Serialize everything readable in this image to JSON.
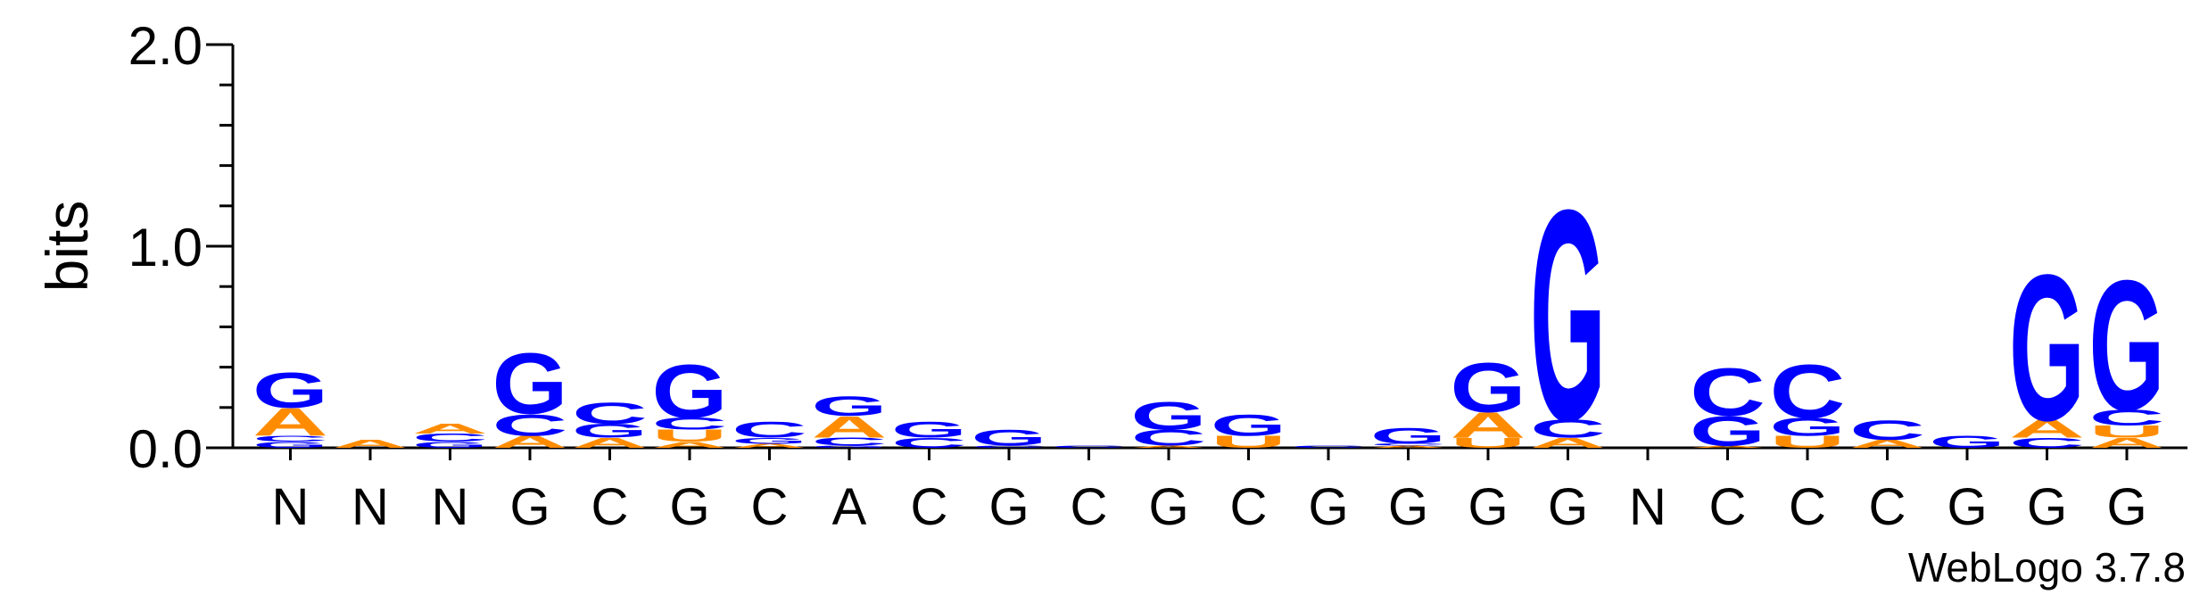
{
  "chart_data": {
    "type": "sequence-logo",
    "ylabel": "bits",
    "ylim": [
      0,
      2
    ],
    "yticks": [
      "0.0",
      "1.0",
      "2.0"
    ],
    "footer": "WebLogo 3.7.8",
    "colors": {
      "G": "#0000ff",
      "C": "#0000ff",
      "A": "#ff8c00",
      "U": "#ff8c00"
    },
    "positions": [
      {
        "label": "N",
        "stack": [
          [
            "G",
            0.03
          ],
          [
            "C",
            0.03
          ],
          [
            "A",
            0.14
          ],
          [
            "G",
            0.18
          ]
        ]
      },
      {
        "label": "N",
        "stack": [
          [
            "A",
            0.04
          ]
        ]
      },
      {
        "label": "N",
        "stack": [
          [
            "G",
            0.03
          ],
          [
            "C",
            0.04
          ],
          [
            "A",
            0.05
          ]
        ]
      },
      {
        "label": "G",
        "stack": [
          [
            "A",
            0.06
          ],
          [
            "C",
            0.11
          ],
          [
            "G",
            0.31
          ]
        ]
      },
      {
        "label": "C",
        "stack": [
          [
            "A",
            0.05
          ],
          [
            "G",
            0.07
          ],
          [
            "C",
            0.11
          ]
        ]
      },
      {
        "label": "G",
        "stack": [
          [
            "A",
            0.03
          ],
          [
            "U",
            0.06
          ],
          [
            "C",
            0.06
          ],
          [
            "G",
            0.27
          ]
        ]
      },
      {
        "label": "C",
        "stack": [
          [
            "A",
            0.02
          ],
          [
            "G",
            0.03
          ],
          [
            "C",
            0.08
          ]
        ]
      },
      {
        "label": "A",
        "stack": [
          [
            "G",
            0.01
          ],
          [
            "C",
            0.04
          ],
          [
            "A",
            0.11
          ],
          [
            "G",
            0.1
          ]
        ]
      },
      {
        "label": "C",
        "stack": [
          [
            "C",
            0.05
          ],
          [
            "G",
            0.08
          ]
        ]
      },
      {
        "label": "G",
        "stack": [
          [
            "C",
            0.01
          ],
          [
            "G",
            0.08
          ]
        ]
      },
      {
        "label": "C",
        "stack": [
          [
            "C",
            0.01
          ]
        ]
      },
      {
        "label": "G",
        "stack": [
          [
            "A",
            0.01
          ],
          [
            "C",
            0.08
          ],
          [
            "G",
            0.14
          ]
        ]
      },
      {
        "label": "C",
        "stack": [
          [
            "U",
            0.06
          ],
          [
            "G",
            0.11
          ]
        ]
      },
      {
        "label": "G",
        "stack": [
          [
            "C",
            0.01
          ]
        ]
      },
      {
        "label": "G",
        "stack": [
          [
            "A",
            0.01
          ],
          [
            "C",
            0.01
          ],
          [
            "G",
            0.08
          ]
        ]
      },
      {
        "label": "G",
        "stack": [
          [
            "U",
            0.05
          ],
          [
            "A",
            0.13
          ],
          [
            "G",
            0.25
          ]
        ]
      },
      {
        "label": "G",
        "stack": [
          [
            "A",
            0.05
          ],
          [
            "C",
            0.09
          ],
          [
            "G",
            1.07
          ]
        ]
      },
      {
        "label": "N",
        "stack": []
      },
      {
        "label": "C",
        "stack": [
          [
            "A",
            0.01
          ],
          [
            "G",
            0.15
          ],
          [
            "C",
            0.24
          ]
        ]
      },
      {
        "label": "C",
        "stack": [
          [
            "U",
            0.06
          ],
          [
            "G",
            0.09
          ],
          [
            "C",
            0.27
          ]
        ]
      },
      {
        "label": "C",
        "stack": [
          [
            "A",
            0.04
          ],
          [
            "C",
            0.1
          ]
        ]
      },
      {
        "label": "G",
        "stack": [
          [
            "G",
            0.06
          ]
        ]
      },
      {
        "label": "G",
        "stack": [
          [
            "C",
            0.05
          ],
          [
            "A",
            0.09
          ],
          [
            "G",
            0.74
          ]
        ]
      },
      {
        "label": "G",
        "stack": [
          [
            "A",
            0.05
          ],
          [
            "U",
            0.06
          ],
          [
            "C",
            0.08
          ],
          [
            "G",
            0.66
          ]
        ]
      }
    ]
  }
}
